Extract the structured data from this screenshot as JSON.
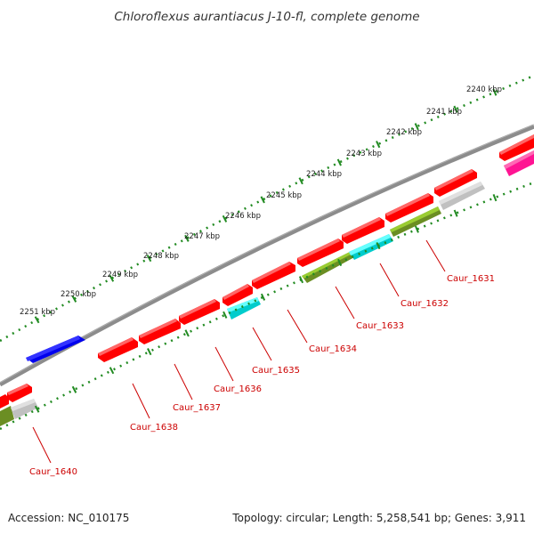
{
  "title": "Chloroflexus aurantiacus J-10-fl, complete genome",
  "footer": {
    "accession": "Accession: NC_010175",
    "summary": "Topology: circular; Length: 5,258,541 bp; Genes: 3,911"
  },
  "colors": {
    "backbone": "#808080",
    "tick_dots": "#228B22",
    "forward_gene": "#ff0000",
    "reverse_gene": "#ff0000",
    "rna_feature": "#00cccc",
    "cds_feature": "#6b8e23",
    "other_feature": "#c0c0c0",
    "blue_feature": "#0000ee",
    "pink_feature": "#ff1493",
    "label_color": "#cc0000"
  },
  "kbp_markers": [
    {
      "label": "2240 kbp"
    },
    {
      "label": "2241 kbp"
    },
    {
      "label": "2242 kbp"
    },
    {
      "label": "2243 kbp"
    },
    {
      "label": "2244 kbp"
    },
    {
      "label": "2245 kbp"
    },
    {
      "label": "2246 kbp"
    },
    {
      "label": "2247 kbp"
    },
    {
      "label": "2248 kbp"
    },
    {
      "label": "2249 kbp"
    },
    {
      "label": "2250 kbp"
    },
    {
      "label": "2251 kbp"
    }
  ],
  "gene_labels": [
    {
      "name": "Caur_1631"
    },
    {
      "name": "Caur_1632"
    },
    {
      "name": "Caur_1633"
    },
    {
      "name": "Caur_1634"
    },
    {
      "name": "Caur_1635"
    },
    {
      "name": "Caur_1636"
    },
    {
      "name": "Caur_1637"
    },
    {
      "name": "Caur_1638"
    },
    {
      "name": "Caur_1640"
    }
  ]
}
